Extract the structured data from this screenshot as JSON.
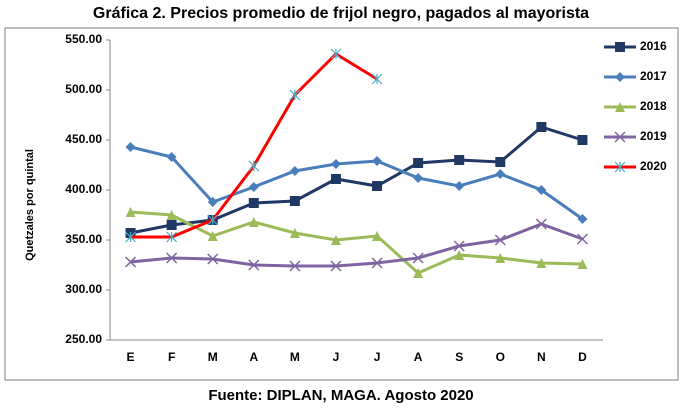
{
  "chart_data": {
    "type": "line",
    "title": "Gráfica 2.  Precios promedio de frijol negro, pagados al mayorista",
    "y_label": "Quetzales por quintal",
    "footer": "Fuente: DIPLAN, MAGA.  Agosto 2020",
    "categories": [
      "E",
      "F",
      "M",
      "A",
      "M",
      "J",
      "J",
      "A",
      "S",
      "O",
      "N",
      "D"
    ],
    "ylim": [
      250,
      550
    ],
    "yticks": [
      {
        "value": 250,
        "label": "250.00"
      },
      {
        "value": 300,
        "label": "300.00"
      },
      {
        "value": 350,
        "label": "350.00"
      },
      {
        "value": 400,
        "label": "400.00"
      },
      {
        "value": 450,
        "label": "450.00"
      },
      {
        "value": 500,
        "label": "500.00"
      },
      {
        "value": 550,
        "label": "550.00"
      }
    ],
    "grid": false,
    "legend": "right",
    "series": [
      {
        "name": "2016",
        "color": "#1f3864",
        "marker": "square",
        "values": [
          357,
          365,
          370,
          387,
          389,
          411,
          404,
          427,
          430,
          428,
          463,
          450
        ]
      },
      {
        "name": "2017",
        "color": "#4a7ebb",
        "marker": "diamond",
        "values": [
          443,
          433,
          388,
          403,
          419,
          426,
          429,
          412,
          404,
          416,
          400,
          371
        ]
      },
      {
        "name": "2018",
        "color": "#9bbb59",
        "marker": "triangle",
        "values": [
          378,
          375,
          354,
          368,
          357,
          350,
          354,
          317,
          335,
          332,
          327,
          326
        ]
      },
      {
        "name": "2019",
        "color": "#8064a2",
        "marker": "x",
        "values": [
          328,
          332,
          331,
          325,
          324,
          324,
          327,
          332,
          344,
          350,
          366,
          351
        ]
      },
      {
        "name": "2020",
        "color": "#ff0000",
        "marker": "star",
        "values": [
          353,
          353,
          370,
          424,
          495,
          536,
          511,
          null,
          null,
          null,
          null,
          null
        ]
      }
    ]
  }
}
